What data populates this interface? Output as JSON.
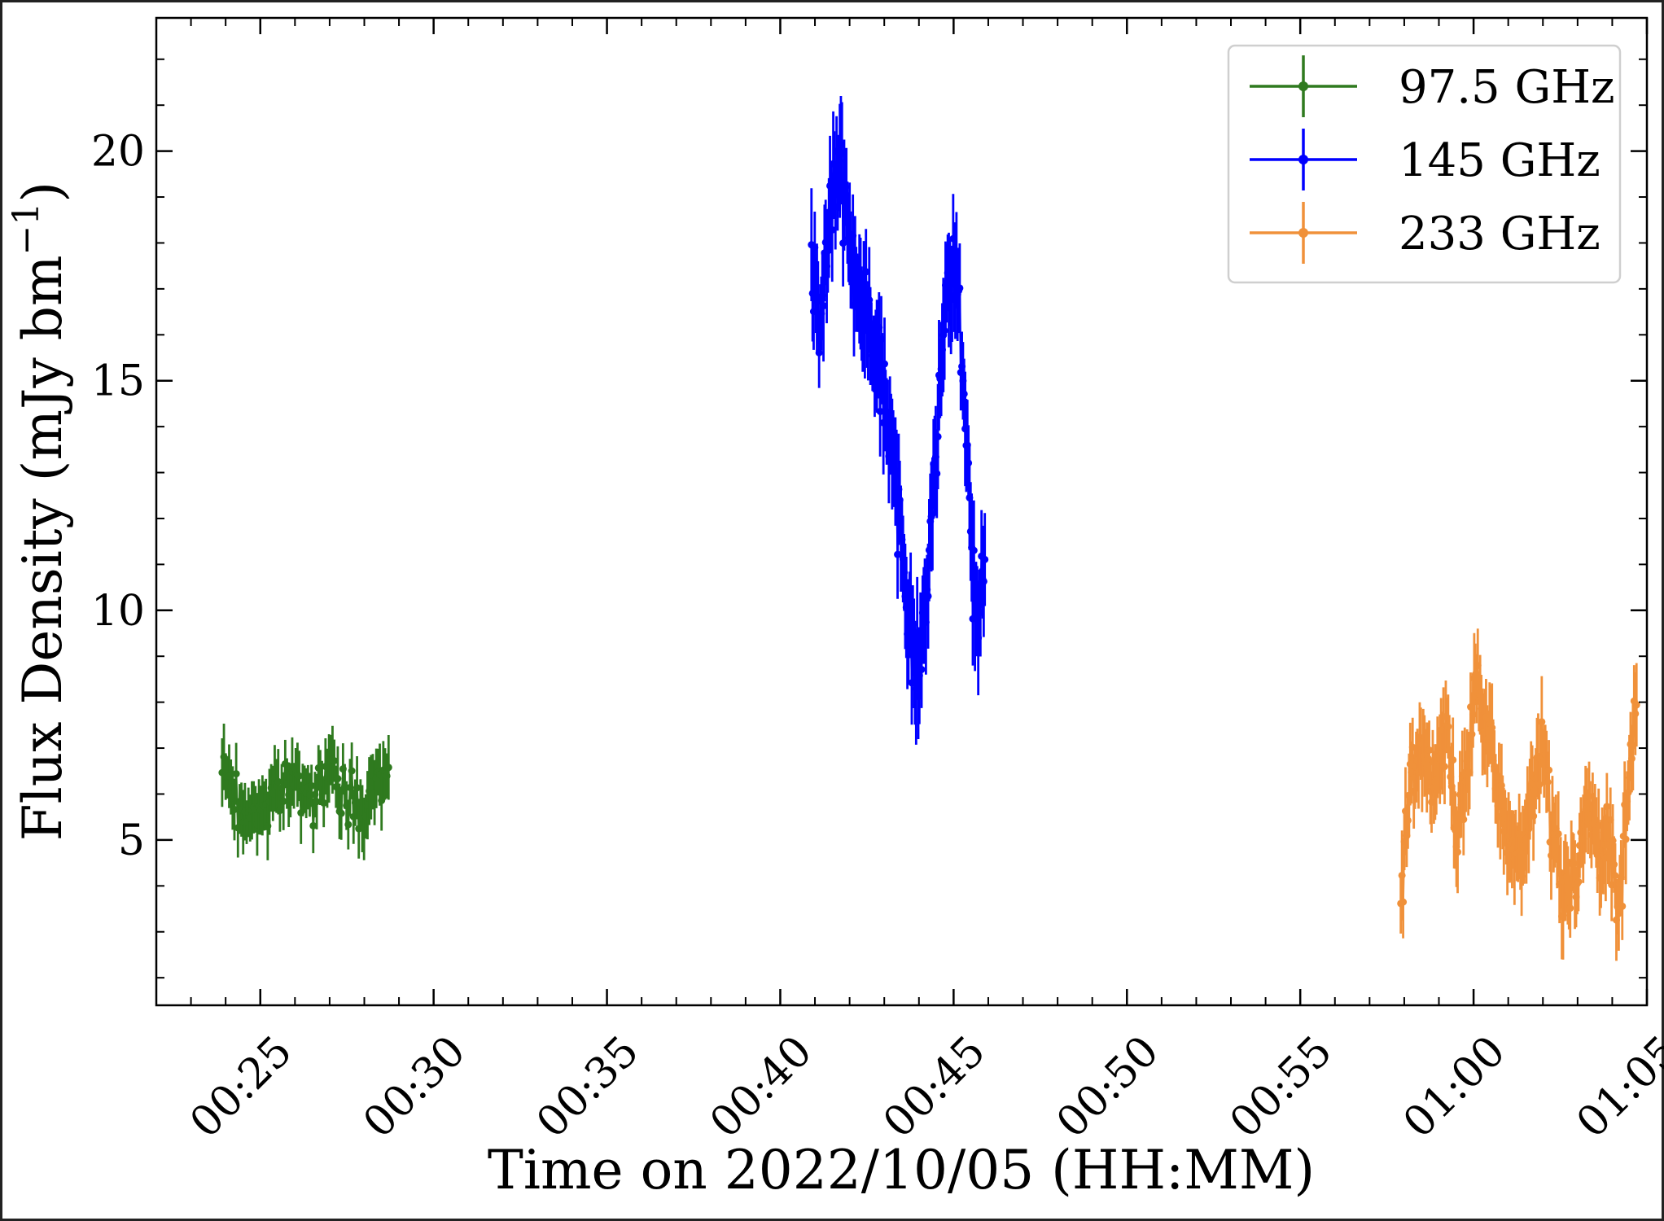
{
  "chart_data": {
    "type": "scatter",
    "xlabel": "Time on 2022/10/05 (HH:MM)",
    "ylabel": "Flux Density (mJy bm",
    "ylabel_sup": "−1",
    "ylabel_close": ")",
    "xlim": [
      22.0,
      65.0
    ],
    "ylim": [
      1.4,
      22.9
    ],
    "x_unit": "minutes after 00:00 on 2022/10/05",
    "x_ticks": [
      {
        "value": 25,
        "label": "00:25"
      },
      {
        "value": 30,
        "label": "00:30"
      },
      {
        "value": 35,
        "label": "00:35"
      },
      {
        "value": 40,
        "label": "00:40"
      },
      {
        "value": 45,
        "label": "00:45"
      },
      {
        "value": 50,
        "label": "00:50"
      },
      {
        "value": 55,
        "label": "00:55"
      },
      {
        "value": 60,
        "label": "01:00"
      },
      {
        "value": 65,
        "label": "01:05"
      }
    ],
    "y_ticks": [
      {
        "value": 5,
        "label": "5"
      },
      {
        "value": 10,
        "label": "10"
      },
      {
        "value": 15,
        "label": "15"
      },
      {
        "value": 20,
        "label": "20"
      }
    ],
    "grid": false,
    "legend_position": "top-right",
    "series": [
      {
        "name": "97.5 GHz",
        "color": "#2f7a1f",
        "x_range": [
          23.9,
          28.7
        ],
        "n_points": 96,
        "error": 0.6,
        "x": [
          24.0,
          24.5,
          25.0,
          25.5,
          26.0,
          26.5,
          27.0,
          27.5,
          28.0,
          28.6
        ],
        "y": [
          6.5,
          5.5,
          5.7,
          6.0,
          6.3,
          6.0,
          6.4,
          5.9,
          5.6,
          6.6
        ]
      },
      {
        "name": "145 GHz",
        "color": "#0000ff",
        "x_range": [
          40.9,
          45.9
        ],
        "n_points": 160,
        "error": 1.0,
        "x": [
          40.9,
          41.2,
          41.5,
          41.7,
          42.0,
          42.3,
          42.6,
          43.0,
          43.3,
          43.5,
          43.8,
          44.0,
          44.2,
          44.5,
          44.8,
          45.1,
          45.3,
          45.5,
          45.7,
          45.9
        ],
        "y": [
          17.5,
          16.5,
          19.0,
          20.0,
          18.0,
          17.0,
          16.2,
          15.0,
          13.0,
          11.0,
          9.5,
          8.3,
          10.5,
          13.5,
          17.0,
          17.5,
          15.0,
          11.0,
          9.5,
          11.5
        ]
      },
      {
        "name": "233 GHz",
        "color": "#f0913a",
        "x_range": [
          57.9,
          64.7
        ],
        "n_points": 200,
        "error": 0.8,
        "x": [
          57.9,
          58.2,
          58.6,
          58.9,
          59.2,
          59.5,
          59.8,
          60.1,
          60.4,
          60.7,
          61.0,
          61.4,
          61.7,
          62.0,
          62.3,
          62.6,
          63.0,
          63.3,
          63.6,
          63.9,
          64.2,
          64.5,
          64.7
        ],
        "y": [
          3.8,
          6.5,
          7.0,
          6.3,
          7.5,
          5.0,
          6.5,
          8.5,
          7.2,
          6.0,
          5.0,
          4.8,
          6.0,
          7.0,
          5.0,
          3.8,
          4.5,
          5.8,
          4.6,
          5.0,
          3.6,
          6.5,
          7.6
        ]
      }
    ]
  }
}
